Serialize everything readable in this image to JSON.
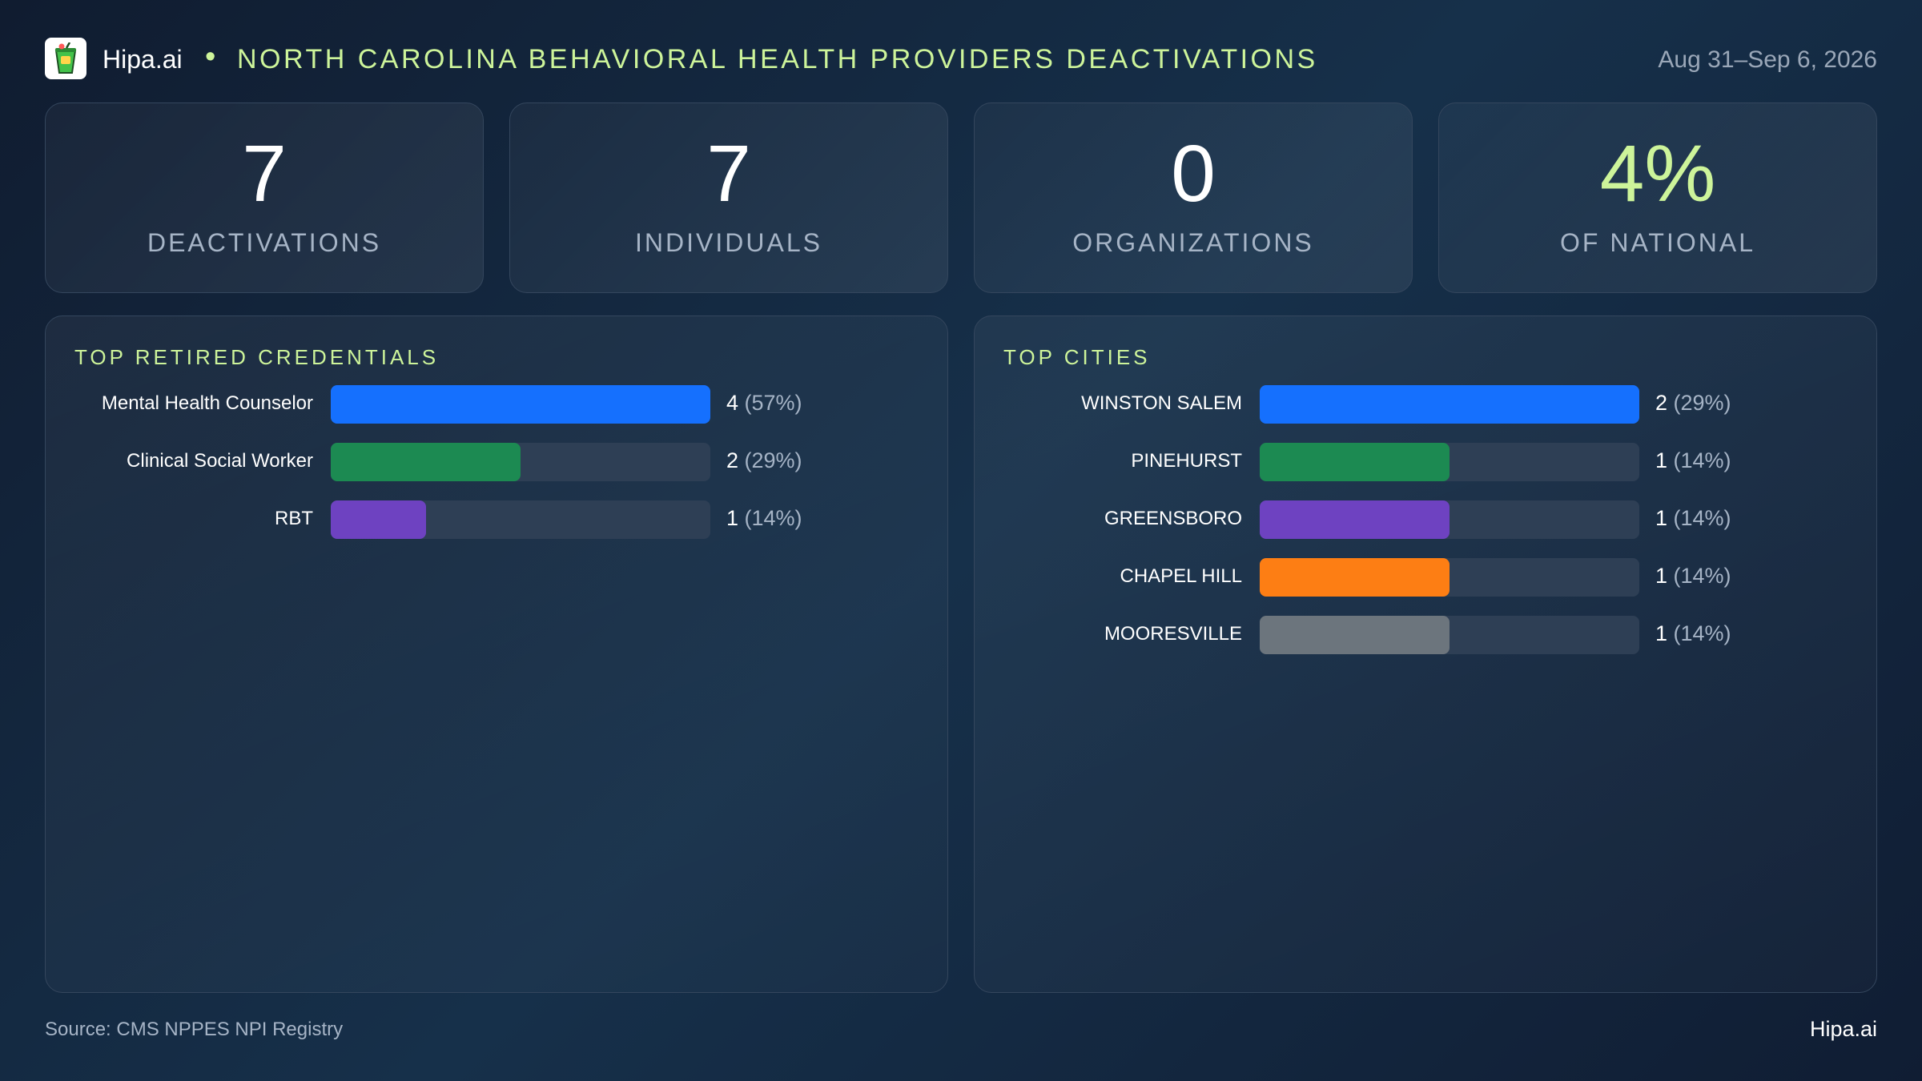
{
  "header": {
    "brand": "Hipa.ai",
    "bullet": "•",
    "title": "NORTH CAROLINA BEHAVIORAL HEALTH PROVIDERS DEACTIVATIONS",
    "date": "Aug 31–Sep 6, 2026",
    "logo_icon": "drink-cup-icon"
  },
  "kpis": [
    {
      "value": "7",
      "label": "DEACTIVATIONS",
      "color": "#ffffff"
    },
    {
      "value": "7",
      "label": "INDIVIDUALS",
      "color": "#ffffff"
    },
    {
      "value": "0",
      "label": "ORGANIZATIONS",
      "color": "#ffffff"
    },
    {
      "value": "4%",
      "label": "OF NATIONAL",
      "color": "#cdf49a"
    }
  ],
  "colors": {
    "accent": "#cdf49a",
    "track": "#2e3f55",
    "blue": "#1570fe",
    "green": "#1c8a52",
    "purple": "#6e42c1",
    "orange": "#fd7e14",
    "gray": "#6c757d"
  },
  "chart_data": [
    {
      "type": "bar",
      "orientation": "horizontal",
      "title": "TOP RETIRED CREDENTIALS",
      "categories": [
        "Mental Health Counselor",
        "Clinical Social Worker",
        "RBT"
      ],
      "values": [
        4,
        2,
        1
      ],
      "percents": [
        "57%",
        "29%",
        "14%"
      ],
      "colors": [
        "#1570fe",
        "#1c8a52",
        "#6e42c1"
      ],
      "xlim": [
        0,
        4
      ]
    },
    {
      "type": "bar",
      "orientation": "horizontal",
      "title": "TOP CITIES",
      "categories": [
        "WINSTON SALEM",
        "PINEHURST",
        "GREENSBORO",
        "CHAPEL HILL",
        "MOORESVILLE"
      ],
      "values": [
        2,
        1,
        1,
        1,
        1
      ],
      "percents": [
        "29%",
        "14%",
        "14%",
        "14%",
        "14%"
      ],
      "colors": [
        "#1570fe",
        "#1c8a52",
        "#6e42c1",
        "#fd7e14",
        "#6c757d"
      ],
      "xlim": [
        0,
        2
      ]
    }
  ],
  "footer": {
    "source": "Source: CMS NPPES NPI Registry",
    "brand": "Hipa.ai"
  }
}
